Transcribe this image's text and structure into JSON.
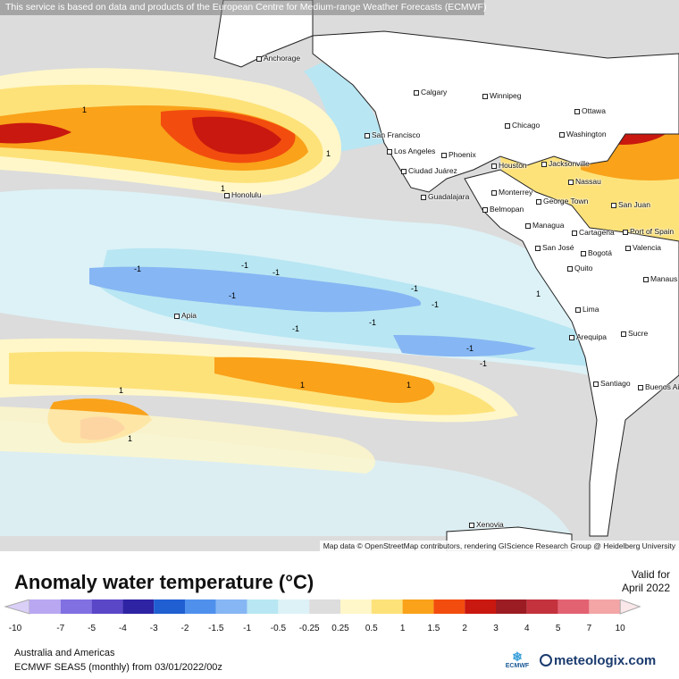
{
  "map": {
    "banner": "This service is based on data and products of the European Centre for Medium-range Weather Forecasts (ECMWF)",
    "attribution": "Map data © OpenStreetMap contributors, rendering GIScience Research Group @ Heidelberg University",
    "cities": [
      "Anchorage",
      "Calgary",
      "Winnipeg",
      "Ottawa",
      "Chicago",
      "Washington",
      "San Francisco",
      "Los Angeles",
      "Phoenix",
      "Ciudad Juárez",
      "Houston",
      "Jacksonville",
      "Nassau",
      "Monterrey",
      "Guadalajara",
      "George Town",
      "San Juan",
      "Belmopan",
      "Managua",
      "Cartagena",
      "Port of Spain",
      "San José",
      "Bogotá",
      "Valencia",
      "Quito",
      "Manaus",
      "Lima",
      "Arequipa",
      "Sucre",
      "Santiago",
      "Buenos Aires",
      "Honolulu",
      "Apia",
      "Xenovia"
    ],
    "contour_labels": [
      "1",
      "1",
      "1",
      "1",
      "1",
      "1",
      "1",
      "1",
      "-1",
      "-1",
      "-1",
      "-1",
      "-1",
      "-1",
      "-1",
      "-1",
      "-1",
      "-1"
    ]
  },
  "legend": {
    "title": "Anomaly water temperature (°C)",
    "valid_label": "Valid for",
    "valid_date": "April 2022",
    "classes": [
      {
        "label": "-10",
        "color": "#ffffff"
      },
      {
        "label": "-7",
        "color": "#b9a7f2"
      },
      {
        "label": "-5",
        "color": "#8070e2"
      },
      {
        "label": "-4",
        "color": "#5a47c8"
      },
      {
        "label": "-3",
        "color": "#2d23a3"
      },
      {
        "label": "-2",
        "color": "#1f5fd2"
      },
      {
        "label": "-1.5",
        "color": "#4f90ec"
      },
      {
        "label": "-1",
        "color": "#86b6f3"
      },
      {
        "label": "-0.5",
        "color": "#b8e6f3"
      },
      {
        "label": "-0.25",
        "color": "#dcf2f7"
      },
      {
        "label": "0.25",
        "color": "#dddddd"
      },
      {
        "label": "0.5",
        "color": "#fff7c9"
      },
      {
        "label": "1",
        "color": "#fde27a"
      },
      {
        "label": "1.5",
        "color": "#f9a21a"
      },
      {
        "label": "2",
        "color": "#f24d0e"
      },
      {
        "label": "3",
        "color": "#c9180f"
      },
      {
        "label": "4",
        "color": "#9c1c24"
      },
      {
        "label": "5",
        "color": "#c4323d"
      },
      {
        "label": "7",
        "color": "#e36272"
      },
      {
        "label": "10",
        "color": "#f4a5a6"
      }
    ]
  },
  "footer": {
    "region": "Australia and Americas",
    "model": "ECMWF SEAS5 (monthly) from 03/01/2022/00z",
    "ecmwf_logo": "ECMWF",
    "brand": "meteologix.com"
  }
}
